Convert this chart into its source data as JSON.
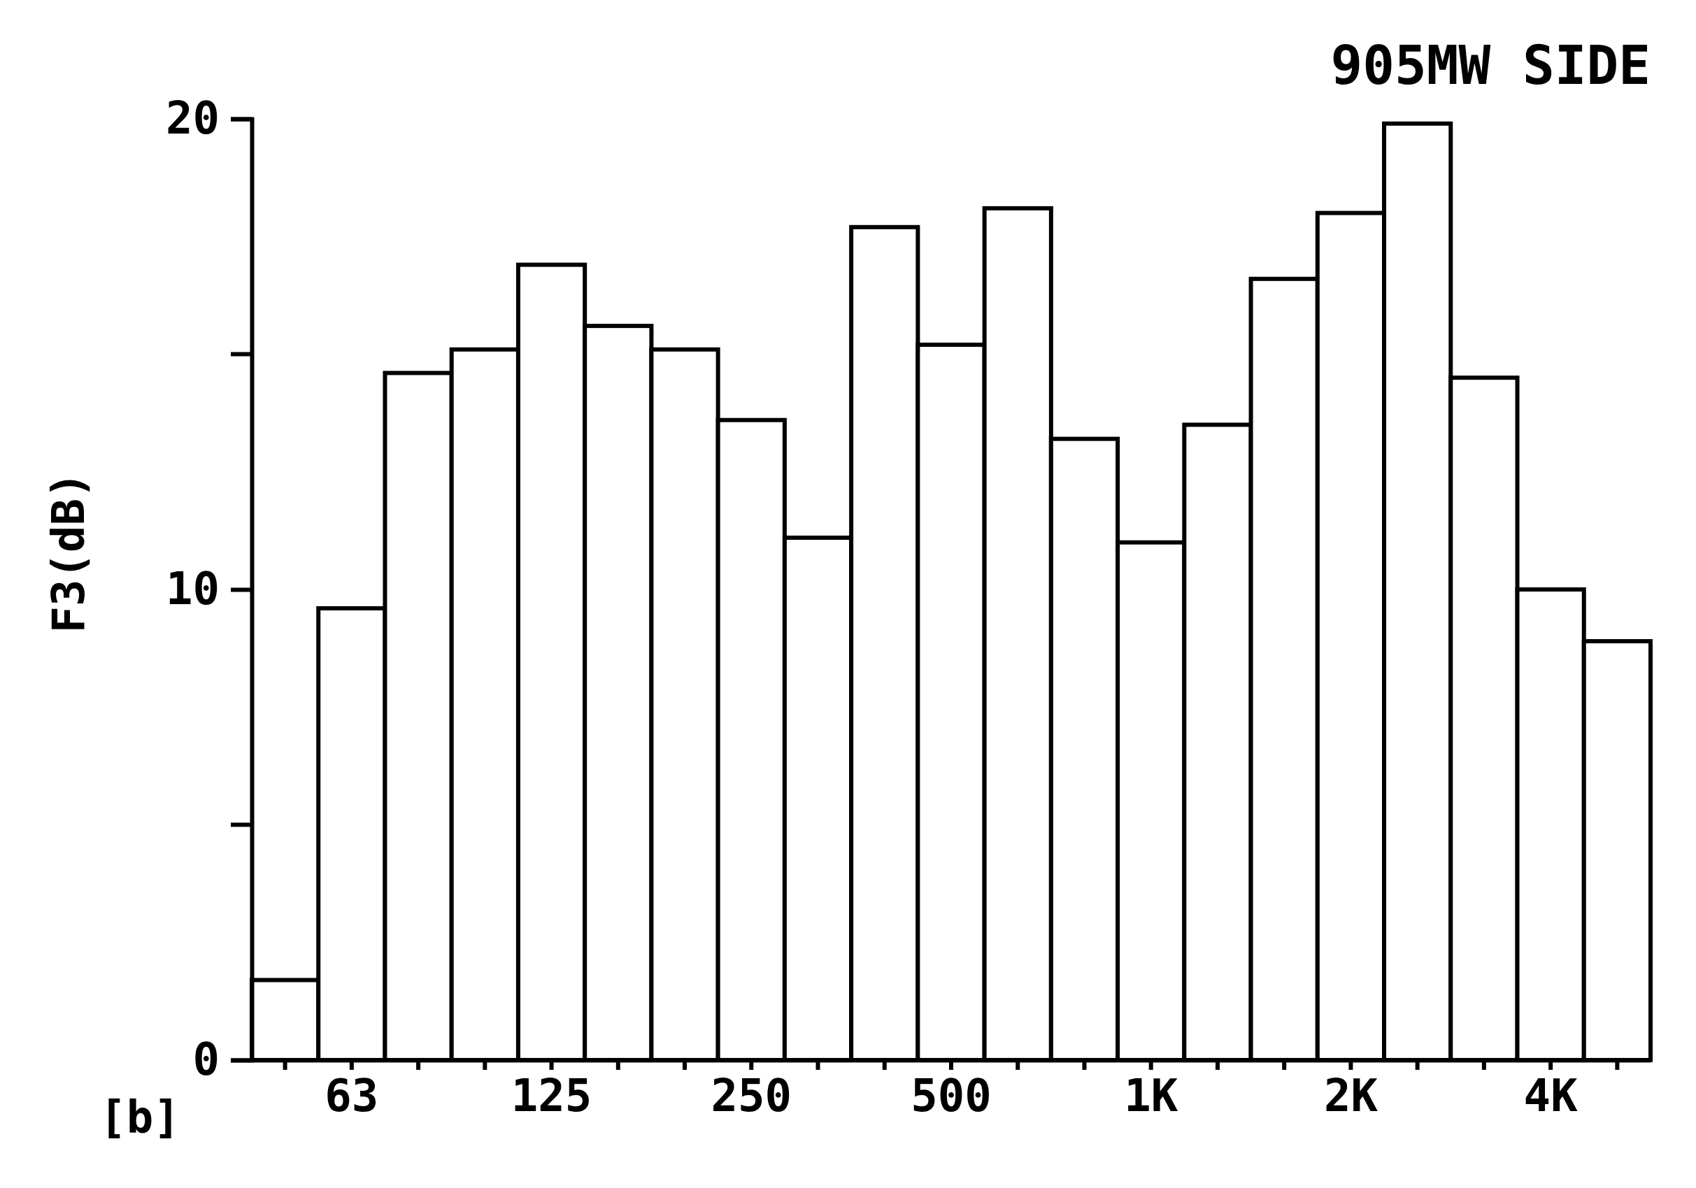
{
  "chart_data": {
    "type": "bar",
    "title": "905MW SIDE",
    "xlabel": "[b]",
    "ylabel": "F3(dB)",
    "categories": [
      null,
      "63",
      null,
      null,
      "125",
      null,
      null,
      "250",
      null,
      null,
      "500",
      null,
      null,
      "1K",
      null,
      null,
      "2K",
      null,
      null,
      "4K",
      null
    ],
    "values": [
      1.7,
      9.6,
      14.6,
      15.1,
      16.9,
      15.6,
      15.1,
      13.6,
      11.1,
      17.7,
      15.2,
      18.1,
      13.2,
      11.0,
      13.5,
      16.6,
      18.0,
      19.9,
      14.5,
      10.0,
      8.9
    ],
    "color": "#ffffff",
    "ylim": [
      0,
      20
    ],
    "yticks": [
      0,
      10,
      20
    ],
    "grid": false
  }
}
